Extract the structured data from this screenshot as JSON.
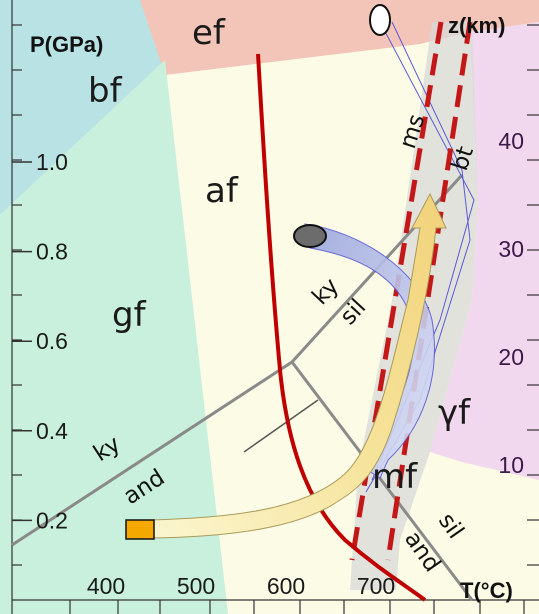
{
  "axes": {
    "p_title": "P(GPa)",
    "z_title": "z(km)",
    "t_title": "T(°C)",
    "p_ticks": [
      {
        "label": "0.2",
        "value": 0.2
      },
      {
        "label": "0.4",
        "value": 0.4
      },
      {
        "label": "0.6",
        "value": 0.6
      },
      {
        "label": "0.8",
        "value": 0.8
      },
      {
        "label": "1.0",
        "value": 1.0
      }
    ],
    "z_ticks": [
      {
        "label": "10",
        "value": 10
      },
      {
        "label": "20",
        "value": 20
      },
      {
        "label": "30",
        "value": 30
      },
      {
        "label": "40",
        "value": 40
      }
    ],
    "t_ticks": [
      {
        "label": "400",
        "value": 400
      },
      {
        "label": "500",
        "value": 500
      },
      {
        "label": "600",
        "value": 600
      },
      {
        "label": "700",
        "value": 700
      }
    ]
  },
  "facies": {
    "bf": "bf",
    "ef": "ef",
    "af": "af",
    "gf": "gf",
    "gamma_f": "γf",
    "mf": "mf"
  },
  "reactions": {
    "ky_sil_top": "ky",
    "ky_sil_bottom": "sil",
    "ky_and_top": "ky",
    "ky_and_bottom": "and",
    "and_sil_left": "and",
    "and_sil_right": "sil",
    "ms": "ms",
    "bt": "bt"
  },
  "colors": {
    "bf": "#b8e2e4",
    "ef": "#f3c4b8",
    "gf": "#c8f0dc",
    "af": "#fcfbe6",
    "gamma_f": "#f2d8ef",
    "melt_band": "#d9d9d9",
    "solidus": "#c00000",
    "dashed": "#c41818",
    "reaction_line": "#8a8a8a",
    "path_yellow": "#f6e39a",
    "path_blue": "#b8c2ee",
    "start_marker": "#f5a800"
  }
}
